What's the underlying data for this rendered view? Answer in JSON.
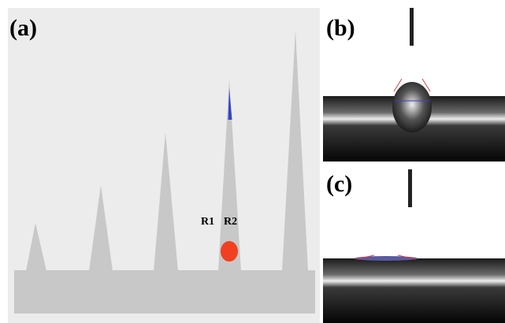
{
  "panels": [
    {
      "label": "(a)",
      "regions": [
        "R1",
        "R2"
      ]
    },
    {
      "label": "(b)"
    },
    {
      "label": "(c)"
    }
  ]
}
